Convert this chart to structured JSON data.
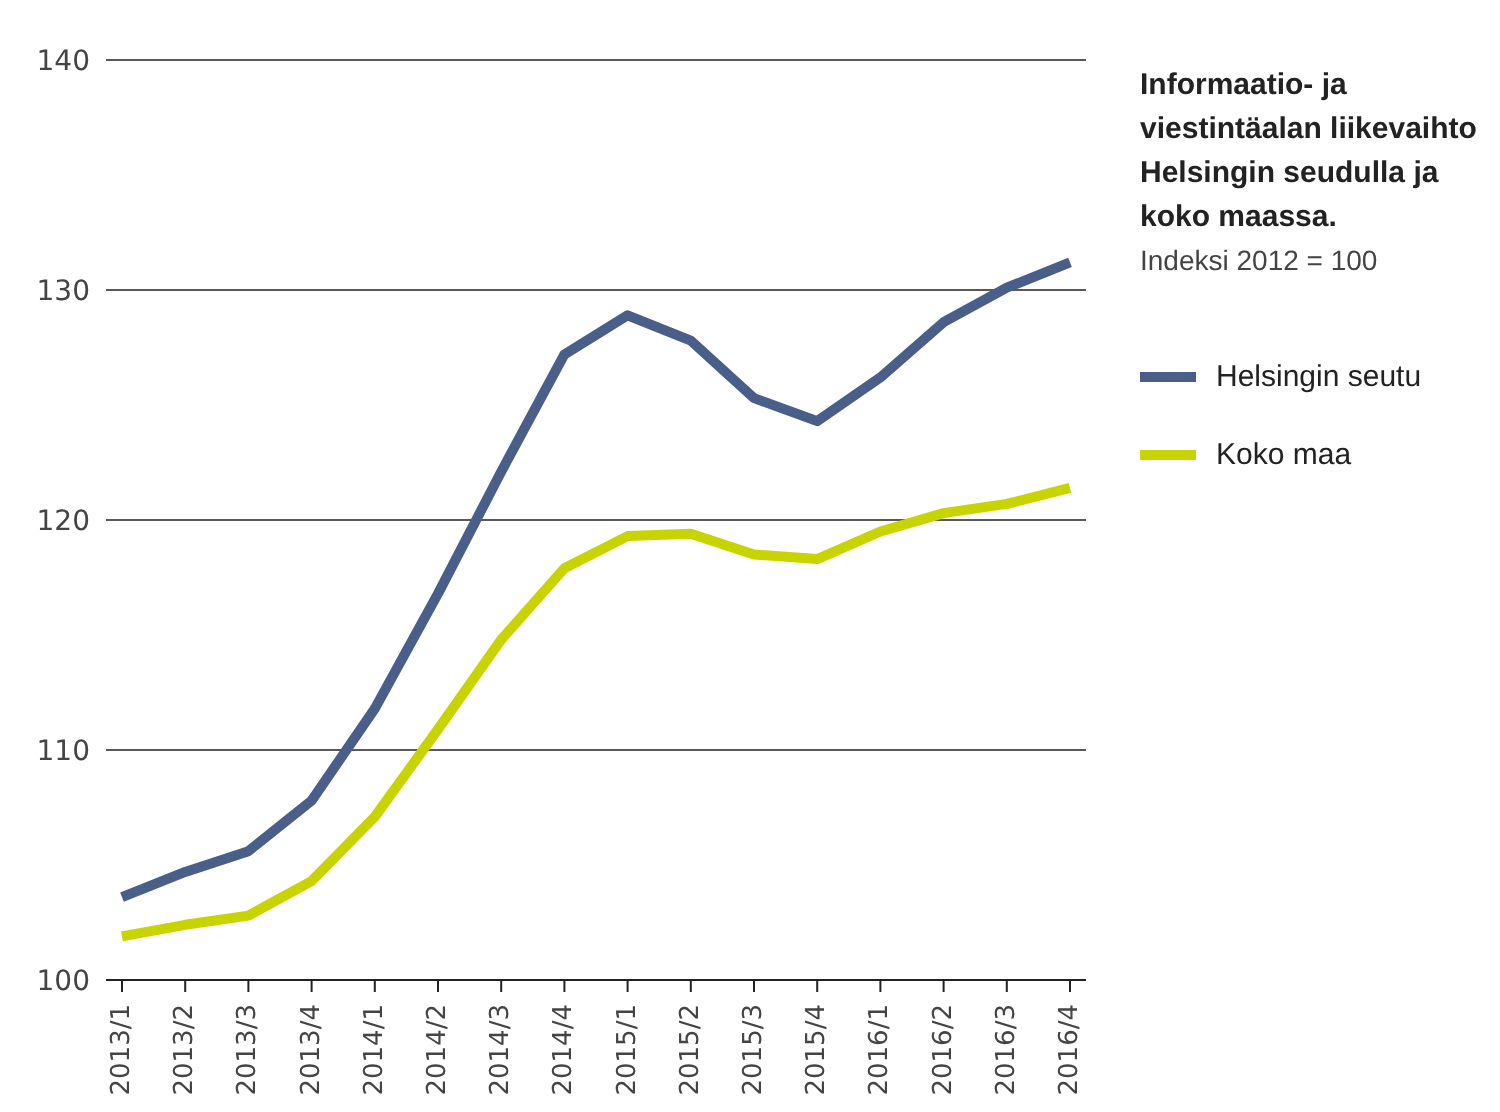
{
  "chart_data": {
    "type": "line",
    "title": "Informaatio- ja viestintäalan liikevaihto Helsingin seudulla ja koko maassa.",
    "subtitle": "Indeksi 2012 = 100",
    "categories": [
      "2013/1",
      "2013/2",
      "2013/3",
      "2013/4",
      "2014/1",
      "2014/2",
      "2014/3",
      "2014/4",
      "2015/1",
      "2015/2",
      "2015/3",
      "2015/4",
      "2016/1",
      "2016/2",
      "2016/3",
      "2016/4"
    ],
    "series": [
      {
        "name": "Helsingin seutu",
        "color": "#4a5e8a",
        "values": [
          103.6,
          104.7,
          105.6,
          107.8,
          111.8,
          116.8,
          122.1,
          127.2,
          128.9,
          127.8,
          125.3,
          124.3,
          126.2,
          128.6,
          130.1,
          131.2
        ]
      },
      {
        "name": "Koko maa",
        "color": "#c8d400",
        "values": [
          101.9,
          102.4,
          102.8,
          104.3,
          107.1,
          110.9,
          114.8,
          117.9,
          119.3,
          119.4,
          118.5,
          118.3,
          119.5,
          120.3,
          120.7,
          121.4
        ]
      }
    ],
    "ylim": [
      100,
      140
    ],
    "yticks": [
      100,
      110,
      120,
      130,
      140
    ],
    "grid": "y",
    "legend": "right",
    "marker": "none",
    "line_style": "solid"
  }
}
